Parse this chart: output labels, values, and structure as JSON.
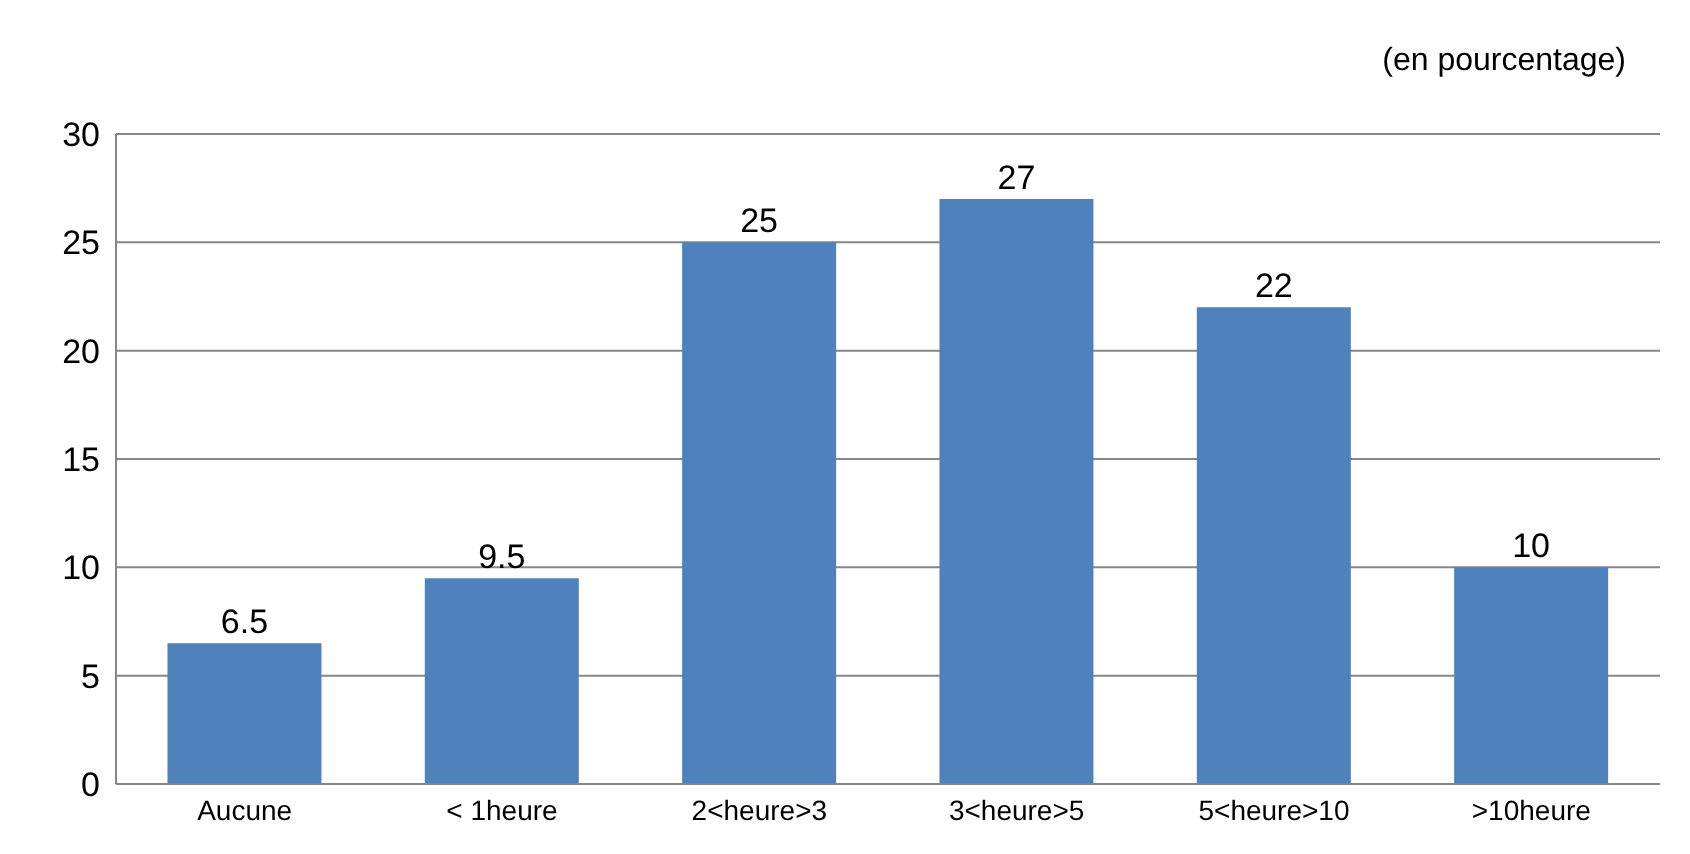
{
  "chart_data": {
    "type": "bar",
    "annotations": [
      "(en pourcentage)"
    ],
    "categories": [
      "Aucune",
      "< 1heure",
      "2<heure>3",
      "3<heure>5",
      "5<heure>10",
      ">10heure"
    ],
    "values": [
      6.5,
      9.5,
      25,
      27,
      22,
      10
    ],
    "color": "#4f81bd",
    "ylim": [
      0,
      30
    ],
    "yticks": [
      0,
      5,
      10,
      15,
      20,
      25,
      30
    ],
    "grid": "y",
    "data_labels": true,
    "legend": false
  }
}
